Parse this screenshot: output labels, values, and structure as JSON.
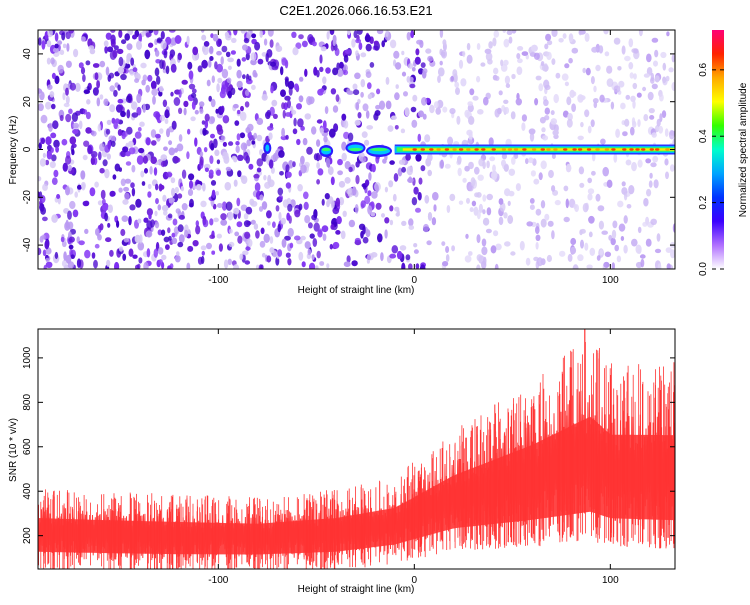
{
  "figure_title": "C2E1.2026.066.16.53.E21",
  "colors": {
    "signal": "#ff3333",
    "spec_dense": "#6a1bd8",
    "spec_light": "#d6c8f5",
    "axis": "#000000"
  },
  "chart_data": [
    {
      "type": "heatmap",
      "title": "",
      "xlabel": "Height of straight line (km)",
      "ylabel": "Frequency (Hz)",
      "xlim": [
        -192,
        133
      ],
      "ylim": [
        -50,
        50
      ],
      "xticks": [
        -100,
        0,
        100
      ],
      "xtick_labels": [
        "-100",
        "0",
        "100"
      ],
      "yticks": [
        -40,
        -20,
        0,
        20,
        40
      ],
      "ytick_labels": [
        "-40",
        "-20",
        "0",
        "20",
        "40"
      ],
      "ridge": {
        "frequency_hz": 0,
        "start_km": -10,
        "end_km": 133,
        "fragments_km": [
          -75,
          -45,
          -30,
          -18
        ]
      },
      "noise_density": {
        "heavy_until_km": -60,
        "fade_until_km": 10
      },
      "colorbar": {
        "label": "Normalized spectral amplitude",
        "range": [
          0.0,
          0.72
        ],
        "ticks": [
          0.0,
          0.2,
          0.4,
          0.6
        ],
        "tick_labels": [
          "0.0",
          "0.2",
          "0.4",
          "0.6"
        ],
        "stops": [
          "#ffffff",
          "#b070ff",
          "#3b00ff",
          "#0033ff",
          "#00a5ff",
          "#00ffcc",
          "#33ff00",
          "#ffff00",
          "#ffaa00",
          "#ff2200",
          "#ff0077"
        ]
      }
    },
    {
      "type": "area",
      "title": "",
      "xlabel": "Height of straight line (km)",
      "ylabel": "SNR (10 * v/v)",
      "xlim": [
        -192,
        133
      ],
      "ylim": [
        50,
        1130
      ],
      "xticks": [
        -100,
        0,
        100
      ],
      "xtick_labels": [
        "-100",
        "0",
        "100"
      ],
      "yticks": [
        200,
        400,
        600,
        800,
        1000
      ],
      "ytick_labels": [
        "200",
        "400",
        "600",
        "800",
        "1000"
      ],
      "series": [
        {
          "name": "SNR",
          "x": [
            -192,
            -160,
            -120,
            -80,
            -40,
            -10,
            20,
            60,
            90,
            100,
            133
          ],
          "upper": [
            330,
            320,
            310,
            300,
            330,
            380,
            550,
            720,
            880,
            780,
            780
          ],
          "lower": [
            100,
            95,
            90,
            90,
            100,
            130,
            190,
            210,
            230,
            210,
            200
          ],
          "peak": {
            "x": 87,
            "y": 1130
          }
        }
      ]
    }
  ]
}
